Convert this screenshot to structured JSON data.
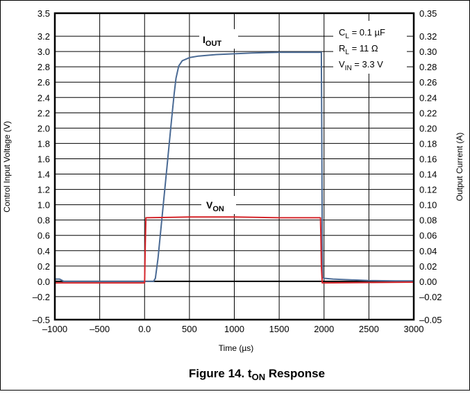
{
  "chart_data": {
    "type": "line",
    "caption": {
      "prefix": "Figure 14. t",
      "sub": "ON",
      "suffix": " Response"
    },
    "xlabel": "Time (µs)",
    "ylabel_left": "Control Input Voltage (V)",
    "ylabel_right": "Output Current (A)",
    "xlim": [
      -1000,
      3000
    ],
    "ylim_left": [
      -0.5,
      3.5
    ],
    "ylim_right": [
      -0.05,
      0.35
    ],
    "grid": true,
    "x_ticks": [
      -1000,
      -500,
      0,
      500,
      1000,
      1500,
      2000,
      2500,
      3000
    ],
    "x_tick_labels": [
      "–1000",
      "–500",
      "0.0",
      "500",
      "1000",
      "1500",
      "2000",
      "2500",
      "3000"
    ],
    "y_left_ticks": [
      3.5,
      3.2,
      3.0,
      2.8,
      2.6,
      2.4,
      2.2,
      2.0,
      1.8,
      1.6,
      1.4,
      1.2,
      1.0,
      0.8,
      0.6,
      0.4,
      0.2,
      0.0,
      -0.2,
      -0.5
    ],
    "y_left_tick_labels": [
      "3.5",
      "3.2",
      "3.0",
      "2.8",
      "2.6",
      "2.4",
      "2.2",
      "2.0",
      "1.8",
      "1.6",
      "1.4",
      "1.2",
      "1.0",
      "0.8",
      "0.6",
      "0.4",
      "0.2",
      "0.0",
      "–0.2",
      "–0.5"
    ],
    "y_right_ticks": [
      0.35,
      0.32,
      0.3,
      0.28,
      0.26,
      0.24,
      0.22,
      0.2,
      0.18,
      0.16,
      0.14,
      0.12,
      0.1,
      0.08,
      0.06,
      0.04,
      0.02,
      0.0,
      -0.02,
      -0.05
    ],
    "y_right_tick_labels": [
      "0.35",
      "0.32",
      "0.30",
      "0.28",
      "0.26",
      "0.24",
      "0.22",
      "0.20",
      "0.18",
      "0.16",
      "0.14",
      "0.12",
      "0.10",
      "0.08",
      "0.06",
      "0.04",
      "0.02",
      "0.00",
      "–0.02",
      "–0.05"
    ],
    "series": [
      {
        "name": "IOUT",
        "label_main": "I",
        "label_sub": "OUT",
        "axis": "right",
        "color": "#4a6a94",
        "x": [
          -1000,
          -950,
          -930,
          -900,
          -800,
          -600,
          -400,
          -200,
          0,
          80,
          100,
          120,
          150,
          200,
          250,
          300,
          330,
          350,
          380,
          420,
          500,
          600,
          800,
          1000,
          1200,
          1500,
          1800,
          1970,
          1975,
          1980,
          1985,
          2000,
          2100,
          2300,
          2500,
          2800,
          3000
        ],
        "y": [
          0.003,
          0.003,
          0.002,
          0.0,
          0.0,
          0.0,
          0.0,
          0.0,
          0.0,
          0.0,
          0.0,
          0.004,
          0.03,
          0.09,
          0.15,
          0.21,
          0.245,
          0.265,
          0.281,
          0.288,
          0.292,
          0.294,
          0.296,
          0.297,
          0.298,
          0.299,
          0.299,
          0.299,
          0.2,
          0.05,
          0.005,
          0.004,
          0.003,
          0.002,
          0.001,
          0.0005,
          0.0005
        ]
      },
      {
        "name": "VON",
        "label_main": "V",
        "label_sub": "ON",
        "axis": "left",
        "color": "#d6262b",
        "x": [
          -1000,
          0,
          8,
          15,
          500,
          1000,
          1500,
          1960,
          1965,
          1970,
          1980,
          3000
        ],
        "y": [
          -0.02,
          -0.02,
          0.5,
          0.83,
          0.84,
          0.84,
          0.83,
          0.83,
          0.6,
          0.2,
          -0.02,
          -0.01
        ]
      }
    ],
    "annotations": {
      "cl": {
        "main": "C",
        "sub": "L",
        "rest": " = 0.1 µF"
      },
      "rl": {
        "main": "R",
        "sub": "L",
        "rest": " = 11 Ω"
      },
      "vin": {
        "main": "V",
        "sub": "IN",
        "rest": " = 3.3 V"
      }
    }
  }
}
